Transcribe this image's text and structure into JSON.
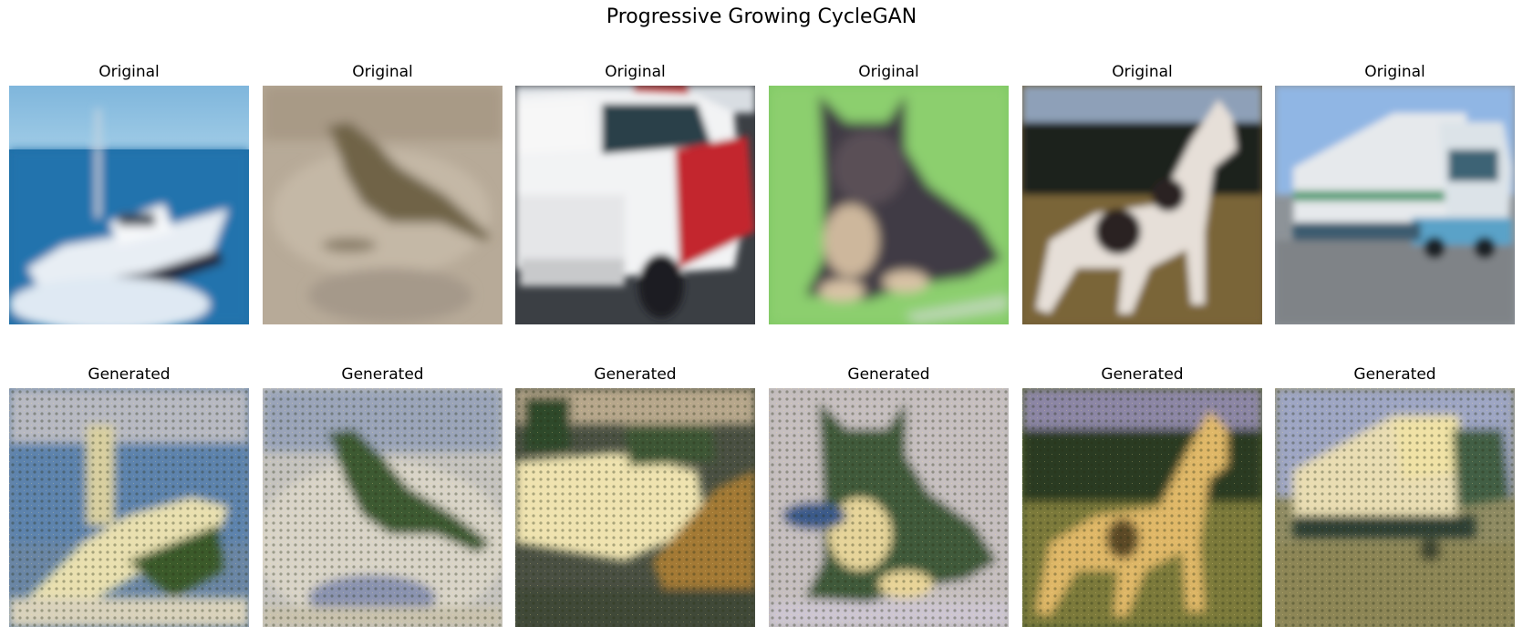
{
  "figure": {
    "title": "Progressive Growing CycleGAN"
  },
  "columns": [
    {
      "original": {
        "label": "Original",
        "subject": "boat"
      },
      "generated": {
        "label": "Generated",
        "subject": "boat"
      }
    },
    {
      "original": {
        "label": "Original",
        "subject": "bird"
      },
      "generated": {
        "label": "Generated",
        "subject": "bird"
      }
    },
    {
      "original": {
        "label": "Original",
        "subject": "car"
      },
      "generated": {
        "label": "Generated",
        "subject": "car"
      }
    },
    {
      "original": {
        "label": "Original",
        "subject": "dog"
      },
      "generated": {
        "label": "Generated",
        "subject": "dog"
      }
    },
    {
      "original": {
        "label": "Original",
        "subject": "horse"
      },
      "generated": {
        "label": "Generated",
        "subject": "horse"
      }
    },
    {
      "original": {
        "label": "Original",
        "subject": "truck"
      },
      "generated": {
        "label": "Generated",
        "subject": "truck"
      }
    }
  ]
}
